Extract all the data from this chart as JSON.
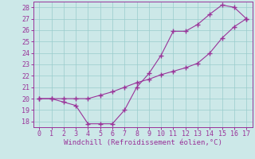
{
  "xlabel": "Windchill (Refroidissement éolien,°C)",
  "line1_x": [
    0,
    1,
    2,
    3,
    4,
    5,
    6,
    7,
    8,
    9,
    10,
    11,
    12,
    13,
    14,
    15,
    16,
    17
  ],
  "line1_y": [
    20.0,
    20.0,
    19.7,
    19.4,
    17.8,
    17.8,
    17.8,
    19.0,
    21.0,
    22.2,
    23.8,
    25.9,
    25.9,
    26.5,
    27.4,
    28.2,
    28.0,
    27.0
  ],
  "line2_x": [
    0,
    1,
    2,
    3,
    4,
    5,
    6,
    7,
    8,
    9,
    10,
    11,
    12,
    13,
    14,
    15,
    16,
    17
  ],
  "line2_y": [
    20.0,
    20.0,
    20.0,
    20.0,
    20.0,
    20.3,
    20.6,
    21.0,
    21.4,
    21.7,
    22.1,
    22.4,
    22.7,
    23.1,
    24.0,
    25.3,
    26.3,
    27.0
  ],
  "line_color": "#993399",
  "xlim": [
    -0.5,
    17.5
  ],
  "ylim": [
    17.5,
    28.5
  ],
  "yticks": [
    18,
    19,
    20,
    21,
    22,
    23,
    24,
    25,
    26,
    27,
    28
  ],
  "xticks": [
    0,
    1,
    2,
    3,
    4,
    5,
    6,
    7,
    8,
    9,
    10,
    11,
    12,
    13,
    14,
    15,
    16,
    17
  ],
  "bg_color": "#cce8e8",
  "grid_color": "#99cccc",
  "marker": "+",
  "marker_size": 4,
  "linewidth": 0.8,
  "tick_fontsize": 6.0,
  "xlabel_fontsize": 6.5
}
